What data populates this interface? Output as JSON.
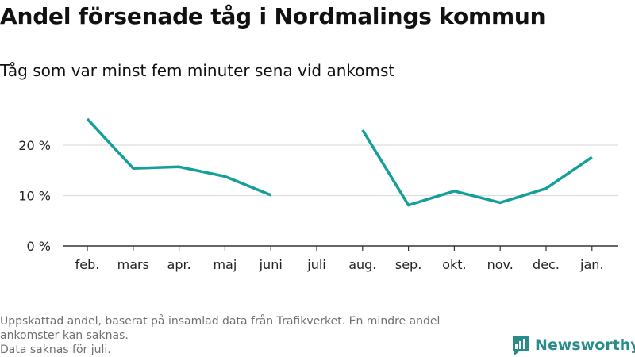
{
  "title": "Andel försenade tåg i Nordmalings kommun",
  "subtitle": "Tåg som var minst fem minuter sena vid ankomst",
  "footnote": {
    "line1": "Uppskattad andel, baserat på insamlad data från Trafikverket. En mindre andel ankomster kan saknas.",
    "line2": "Data saknas för juli."
  },
  "brand": {
    "name": "Newsworthy",
    "icon": "newsworthy-logo-icon"
  },
  "colors": {
    "line": "#14a098",
    "grid": "#dddddd",
    "axis": "#333333",
    "brand": "#2a8b8b"
  },
  "chart_data": {
    "type": "line",
    "title": "Andel försenade tåg i Nordmalings kommun",
    "subtitle": "Tåg som var minst fem minuter sena vid ankomst",
    "xlabel": "",
    "ylabel": "",
    "categories": [
      "feb.",
      "mars",
      "apr.",
      "maj",
      "juni",
      "juli",
      "aug.",
      "sep.",
      "okt.",
      "nov.",
      "dec.",
      "jan."
    ],
    "series": [
      {
        "values": [
          25.2,
          15.4,
          15.7,
          13.8,
          10.1,
          null,
          23.0,
          8.1,
          10.9,
          8.6,
          11.4,
          17.6
        ]
      }
    ],
    "ylim": [
      0,
      27
    ],
    "yticks": [
      0,
      10,
      20
    ],
    "ytick_labels": [
      "0 %",
      "10 %",
      "20 %"
    ],
    "unit": "%",
    "grid": true,
    "legend": "none"
  }
}
